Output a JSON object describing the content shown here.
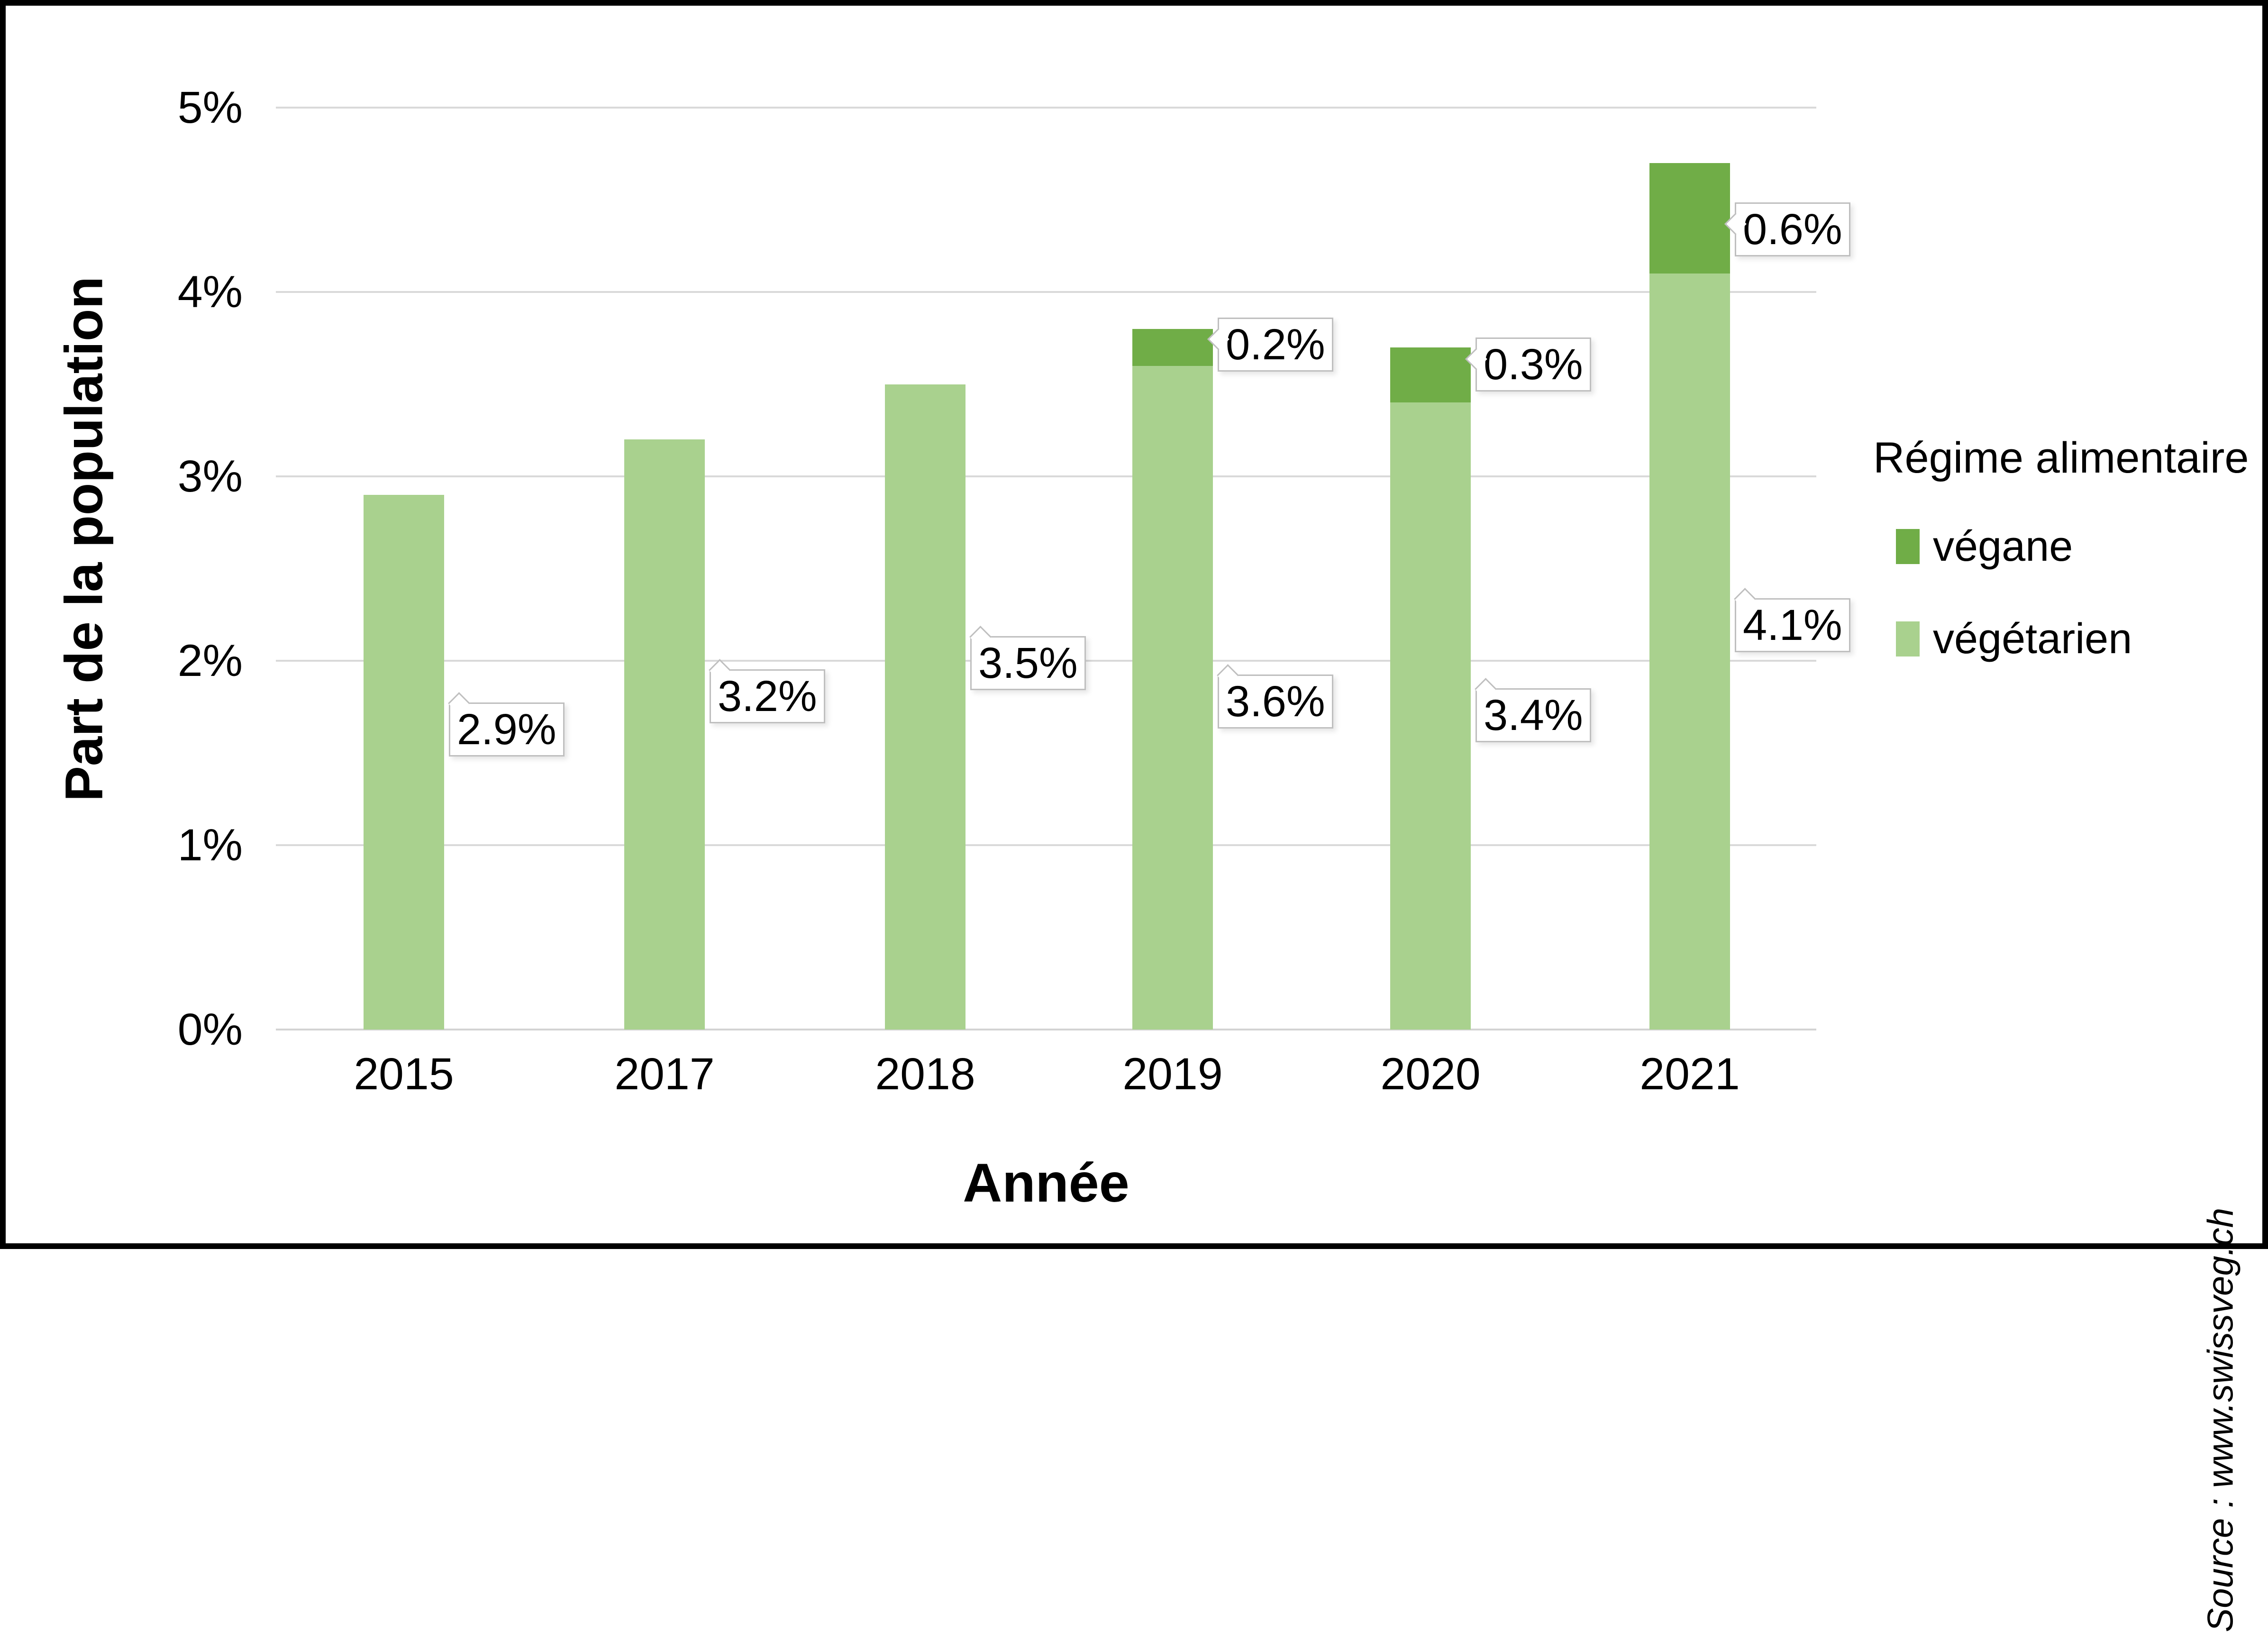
{
  "chart_data": {
    "type": "bar",
    "stacked": true,
    "title": "",
    "categories": [
      "2015",
      "2017",
      "2018",
      "2019",
      "2020",
      "2021"
    ],
    "series": [
      {
        "name": "végane",
        "color": "#70AD47",
        "values": [
          null,
          null,
          null,
          0.2,
          0.3,
          0.6
        ],
        "data_labels": [
          null,
          null,
          null,
          "0.2%",
          "0.3%",
          "0.6%"
        ]
      },
      {
        "name": "végétarien",
        "color": "#A9D18E",
        "values": [
          2.9,
          3.2,
          3.5,
          3.6,
          3.4,
          4.1
        ],
        "data_labels": [
          "2.9%",
          "3.2%",
          "3.5%",
          "3.6%",
          "3.4%",
          "4.1%"
        ]
      }
    ],
    "xlabel": "Année",
    "ylabel": "Part de la population",
    "ylim": [
      0,
      5
    ],
    "ytick_labels": [
      "0%",
      "1%",
      "2%",
      "3%",
      "4%",
      "5%"
    ],
    "grid": true,
    "legend": {
      "position": "right",
      "title": "Régime alimentaire",
      "items": [
        {
          "label": "végane",
          "color": "#70AD47"
        },
        {
          "label": "végétarien",
          "color": "#A9D18E"
        }
      ]
    },
    "source": "Source : www.swissveg.ch"
  }
}
